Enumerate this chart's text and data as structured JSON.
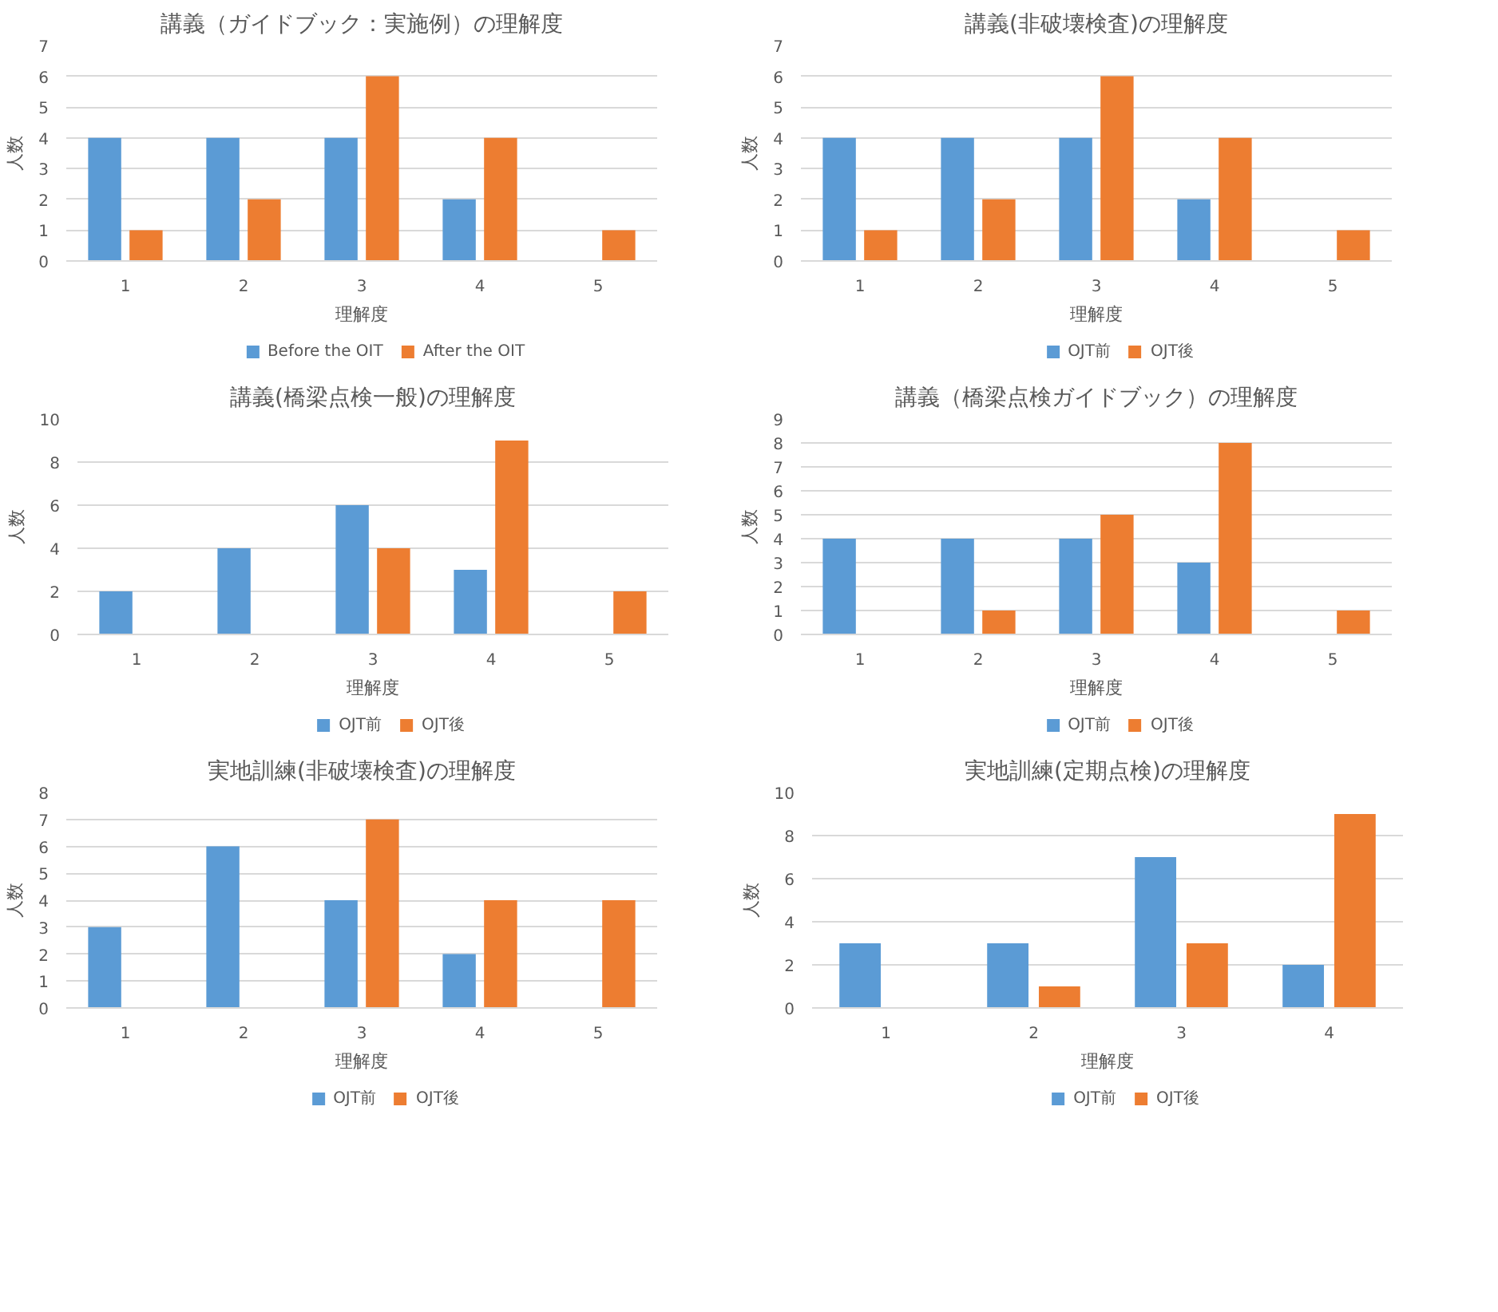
{
  "chart_data": [
    {
      "type": "bar",
      "title": "講義（ガイドブック：実施例）の理解度",
      "xlabel": "理解度",
      "ylabel": "人数",
      "categories": [
        "1",
        "2",
        "3",
        "4",
        "5"
      ],
      "ylim": [
        0,
        7
      ],
      "yticks": [
        0,
        1,
        2,
        3,
        4,
        5,
        6,
        7
      ],
      "grid": "y",
      "legend": "bottom",
      "series": [
        {
          "name": "Before the OIT",
          "color": "#5b9bd5",
          "values": [
            4,
            4,
            4,
            2,
            0
          ]
        },
        {
          "name": "After the OIT",
          "color": "#ed7d31",
          "values": [
            1,
            2,
            6,
            4,
            1
          ]
        }
      ]
    },
    {
      "type": "bar",
      "title": "講義(非破壊検査)の理解度",
      "xlabel": "理解度",
      "ylabel": "人数",
      "categories": [
        "1",
        "2",
        "3",
        "4",
        "5"
      ],
      "ylim": [
        0,
        7
      ],
      "yticks": [
        0,
        1,
        2,
        3,
        4,
        5,
        6,
        7
      ],
      "grid": "y",
      "legend": "bottom",
      "series": [
        {
          "name": "OJT前",
          "color": "#5b9bd5",
          "values": [
            4,
            4,
            4,
            2,
            0
          ]
        },
        {
          "name": "OJT後",
          "color": "#ed7d31",
          "values": [
            1,
            2,
            6,
            4,
            1
          ]
        }
      ]
    },
    {
      "type": "bar",
      "title": "講義(橋梁点検一般)の理解度",
      "xlabel": "理解度",
      "ylabel": "人数",
      "categories": [
        "1",
        "2",
        "3",
        "4",
        "5"
      ],
      "ylim": [
        0,
        10
      ],
      "yticks": [
        0,
        2,
        4,
        6,
        8,
        10
      ],
      "grid": "y",
      "legend": "bottom",
      "series": [
        {
          "name": "OJT前",
          "color": "#5b9bd5",
          "values": [
            2,
            4,
            6,
            3,
            0
          ]
        },
        {
          "name": "OJT後",
          "color": "#ed7d31",
          "values": [
            0,
            0,
            4,
            9,
            2
          ]
        }
      ]
    },
    {
      "type": "bar",
      "title": "講義（橋梁点検ガイドブック）の理解度",
      "xlabel": "理解度",
      "ylabel": "人数",
      "categories": [
        "1",
        "2",
        "3",
        "4",
        "5"
      ],
      "ylim": [
        0,
        9
      ],
      "yticks": [
        0,
        1,
        2,
        3,
        4,
        5,
        6,
        7,
        8,
        9
      ],
      "grid": "y",
      "legend": "bottom",
      "series": [
        {
          "name": "OJT前",
          "color": "#5b9bd5",
          "values": [
            4,
            4,
            4,
            3,
            0
          ]
        },
        {
          "name": "OJT後",
          "color": "#ed7d31",
          "values": [
            0,
            1,
            5,
            8,
            1
          ]
        }
      ]
    },
    {
      "type": "bar",
      "title": "実地訓練(非破壊検査)の理解度",
      "xlabel": "理解度",
      "ylabel": "人数",
      "categories": [
        "1",
        "2",
        "3",
        "4",
        "5"
      ],
      "ylim": [
        0,
        8
      ],
      "yticks": [
        0,
        1,
        2,
        3,
        4,
        5,
        6,
        7,
        8
      ],
      "grid": "y",
      "legend": "bottom",
      "series": [
        {
          "name": "OJT前",
          "color": "#5b9bd5",
          "values": [
            3,
            6,
            4,
            2,
            0
          ]
        },
        {
          "name": "OJT後",
          "color": "#ed7d31",
          "values": [
            0,
            0,
            7,
            4,
            4
          ]
        }
      ]
    },
    {
      "type": "bar",
      "title": "実地訓練(定期点検)の理解度",
      "xlabel": "理解度",
      "ylabel": "人数",
      "categories": [
        "1",
        "2",
        "3",
        "4"
      ],
      "ylim": [
        0,
        10
      ],
      "yticks": [
        0,
        2,
        4,
        6,
        8,
        10
      ],
      "grid": "y",
      "legend": "bottom",
      "series": [
        {
          "name": "OJT前",
          "color": "#5b9bd5",
          "values": [
            3,
            3,
            7,
            2
          ]
        },
        {
          "name": "OJT後",
          "color": "#ed7d31",
          "values": [
            0,
            1,
            3,
            9
          ]
        }
      ]
    }
  ]
}
